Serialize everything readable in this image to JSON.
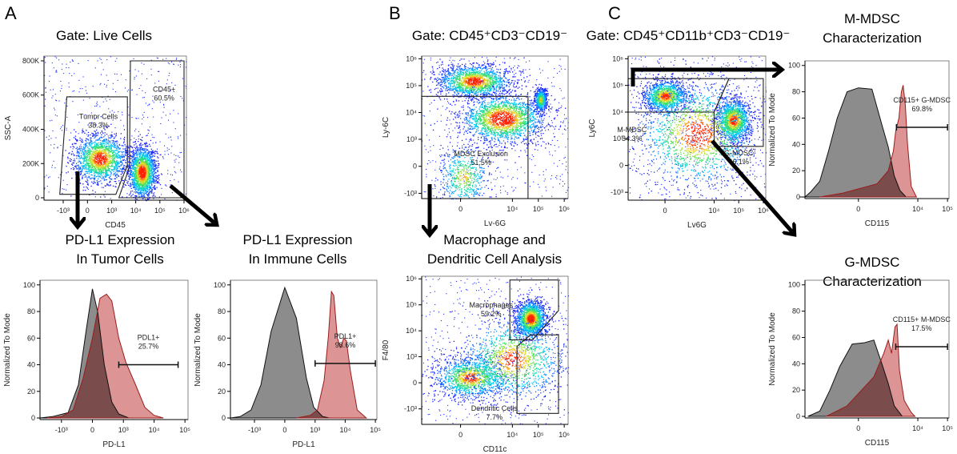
{
  "panel_letters": [
    "A",
    "B",
    "C"
  ],
  "colors": {
    "control_fill": "#8c8c8c",
    "stain_fill": "#d98888",
    "stain_line": "#9b1c1c",
    "overlap": "#7a4c4c",
    "density": [
      "#1a1aff",
      "#00c8ff",
      "#30e060",
      "#f0e020",
      "#ff2000"
    ]
  },
  "chart_data": [
    {
      "id": "a-scatter",
      "panel": "A",
      "type": "scatter",
      "title": [
        "Gate: Live Cells"
      ],
      "xlabel": "CD45",
      "ylabel": "SSC-A",
      "xscale": "biexponential",
      "yscale": "linear",
      "xticks": [
        "-10³",
        "0",
        "10³",
        "10⁴",
        "10⁵",
        "10⁶"
      ],
      "xtick_values": [
        -1000,
        0,
        1000,
        10000,
        100000,
        1000000
      ],
      "yticks": [
        "0",
        "200K",
        "400K",
        "600K",
        "800K"
      ],
      "ytick_values": [
        0,
        200000,
        400000,
        600000,
        800000
      ],
      "populations": [
        {
          "center": [
            300,
            230000
          ],
          "spread": [
            0.55,
            70000
          ],
          "weight": 1.0
        },
        {
          "center": [
            18000,
            150000
          ],
          "spread": [
            0.28,
            75000
          ],
          "weight": 1.1
        }
      ],
      "gates": [
        {
          "label": "Tumor Cells",
          "pct": "38.3%",
          "vertices": [
            [
              -1400,
              20000
            ],
            [
              -700,
              590000
            ],
            [
              4500,
              590000
            ],
            [
              4500,
              190000
            ],
            [
              1500,
              20000
            ]
          ],
          "label_at": [
            250,
            460000
          ]
        },
        {
          "label": "CD45+",
          "pct": "60.5%",
          "vertices": [
            [
              2000,
              0
            ],
            [
              5500,
              180000
            ],
            [
              6000,
              800000
            ],
            [
              1000000,
              800000
            ],
            [
              1000000,
              0
            ]
          ],
          "label_at": [
            150000,
            620000
          ]
        }
      ]
    },
    {
      "id": "a-hist-tumor",
      "panel": "A",
      "type": "histogram",
      "title": [
        "PD-L1 Expression",
        "In Tumor Cells"
      ],
      "xlabel": "PD-L1",
      "ylabel": "Normalized To Mode",
      "xticks": [
        "-10³",
        "0",
        "10³",
        "10⁴",
        "10⁵"
      ],
      "xtick_values": [
        -1000,
        0,
        1000,
        10000,
        100000
      ],
      "yticks": [
        "0",
        "20",
        "40",
        "60",
        "80",
        "100"
      ],
      "ytick_values": [
        0,
        20,
        40,
        60,
        80,
        100
      ],
      "series": [
        {
          "role": "control",
          "points": [
            [
              -6000,
              0
            ],
            [
              -2000,
              1
            ],
            [
              -600,
              4
            ],
            [
              -250,
              25
            ],
            [
              -100,
              65
            ],
            [
              0,
              97
            ],
            [
              80,
              80
            ],
            [
              200,
              40
            ],
            [
              400,
              12
            ],
            [
              700,
              3
            ],
            [
              1500,
              0
            ]
          ]
        },
        {
          "role": "stained",
          "points": [
            [
              -3000,
              0
            ],
            [
              -1000,
              1
            ],
            [
              -400,
              6
            ],
            [
              -150,
              30
            ],
            [
              0,
              60
            ],
            [
              120,
              90
            ],
            [
              250,
              93
            ],
            [
              400,
              88
            ],
            [
              700,
              60
            ],
            [
              1200,
              42
            ],
            [
              2500,
              25
            ],
            [
              5000,
              8
            ],
            [
              10000,
              2
            ],
            [
              20000,
              0
            ]
          ]
        }
      ],
      "gates": [
        {
          "label": "PDL1+",
          "pct": "25.7%",
          "range": [
            700,
            60000
          ],
          "level": 40
        }
      ]
    },
    {
      "id": "a-hist-immune",
      "panel": "A",
      "type": "histogram",
      "title": [
        "PD-L1 Expression",
        "In Immune Cells"
      ],
      "xlabel": "PD-L1",
      "ylabel": "Normalized To Mode",
      "xticks": [
        "-10³",
        "0",
        "10³",
        "10⁴",
        "10⁵"
      ],
      "xtick_values": [
        -1000,
        0,
        1000,
        10000,
        100000
      ],
      "yticks": [
        "0",
        "20",
        "40",
        "60",
        "80",
        "100"
      ],
      "ytick_values": [
        0,
        20,
        40,
        60,
        80,
        100
      ],
      "series": [
        {
          "role": "control",
          "points": [
            [
              -8000,
              0
            ],
            [
              -3000,
              1
            ],
            [
              -1300,
              6
            ],
            [
              -600,
              25
            ],
            [
              -250,
              65
            ],
            [
              0,
              98
            ],
            [
              200,
              75
            ],
            [
              500,
              30
            ],
            [
              900,
              8
            ],
            [
              1800,
              1
            ],
            [
              3000,
              0
            ]
          ]
        },
        {
          "role": "stained",
          "points": [
            [
              200,
              0
            ],
            [
              700,
              2
            ],
            [
              1200,
              6
            ],
            [
              2000,
              28
            ],
            [
              2800,
              62
            ],
            [
              3500,
              95
            ],
            [
              4200,
              92
            ],
            [
              5500,
              60
            ],
            [
              7000,
              53
            ],
            [
              9000,
              60
            ],
            [
              11000,
              58
            ],
            [
              15000,
              35
            ],
            [
              25000,
              6
            ],
            [
              50000,
              0
            ]
          ]
        }
      ],
      "gates": [
        {
          "label": "PDL1+",
          "pct": "98.6%",
          "range": [
            1000,
            100000
          ],
          "level": 41
        }
      ]
    },
    {
      "id": "b-scatter-gate",
      "panel": "B",
      "type": "scatter",
      "title": [
        "Gate: CD45⁺CD3⁻CD19⁻"
      ],
      "xlabel": "Lv-6G",
      "ylabel": "Ly-6C",
      "xscale": "biexponential",
      "yscale": "biexponential",
      "xticks": [
        "0",
        "10⁴",
        "10⁵",
        "10⁶"
      ],
      "xtick_values": [
        0,
        10000,
        100000,
        1000000
      ],
      "yticks": [
        "-10³",
        "0",
        "10³",
        "10⁴",
        "10⁵",
        "10⁶"
      ],
      "ytick_values": [
        -1000,
        0,
        1000,
        10000,
        100000,
        1000000
      ],
      "populations": [
        {
          "center": [
            300,
            150000
          ],
          "spread": [
            0.7,
            0.3
          ],
          "weight": 1.0
        },
        {
          "center": [
            4000,
            6000
          ],
          "spread": [
            0.8,
            0.45
          ],
          "weight": 1.2
        },
        {
          "center": [
            120000,
            30000
          ],
          "spread": [
            0.12,
            0.22
          ],
          "weight": 0.35
        },
        {
          "center": [
            50,
            -200
          ],
          "spread": [
            0.5,
            0.6
          ],
          "weight": 0.35
        }
      ],
      "gates": [
        {
          "label": "MDSC Exclusion",
          "pct": "51.5%",
          "vertices": [
            [
              -100000,
              -100000
            ],
            [
              -100000,
              40000
            ],
            [
              40000,
              40000
            ],
            [
              40000,
              -100000
            ]
          ],
          "label_at": [
            600,
            200
          ]
        }
      ]
    },
    {
      "id": "b-scatter-macrophage",
      "panel": "B",
      "type": "scatter",
      "title": [
        "Macrophage and",
        "Dendritic Cell Analysis"
      ],
      "xlabel": "CD11c",
      "ylabel": "F4/80",
      "xscale": "biexponential",
      "yscale": "biexponential",
      "xticks": [
        "0",
        "10⁴",
        "10⁵",
        "10⁶"
      ],
      "xtick_values": [
        0,
        10000,
        100000,
        1000000
      ],
      "yticks": [
        "-10³",
        "0",
        "10³",
        "10⁴",
        "10⁵",
        "10⁶"
      ],
      "ytick_values": [
        -1000,
        0,
        1000,
        10000,
        100000,
        1000000
      ],
      "populations": [
        {
          "center": [
            50000,
            30000
          ],
          "spread": [
            0.3,
            0.35
          ],
          "weight": 1.0
        },
        {
          "center": [
            200,
            100
          ],
          "spread": [
            0.7,
            0.4
          ],
          "weight": 0.8
        },
        {
          "center": [
            10000,
            800
          ],
          "spread": [
            1.0,
            0.8
          ],
          "weight": 0.8
        }
      ],
      "gates": [
        {
          "label": "Macrophages",
          "pct": "59.2%",
          "vertices": [
            [
              8000,
              4500
            ],
            [
              8000,
              900000
            ],
            [
              600000,
              900000
            ],
            [
              600000,
              60000
            ],
            [
              60000,
              4500
            ]
          ],
          "label_at": [
            1500,
            80000
          ]
        },
        {
          "label": "Dendritic Cells",
          "pct": "7.7%",
          "vertices": [
            [
              15000,
              -1500
            ],
            [
              15000,
              2500
            ],
            [
              50000,
              7000
            ],
            [
              600000,
              7000
            ],
            [
              600000,
              -1500
            ]
          ],
          "label_at": [
            2000,
            -1200
          ]
        }
      ]
    },
    {
      "id": "c-scatter-gate",
      "panel": "C",
      "type": "scatter",
      "title": [
        "Gate: CD45⁺CD11b⁺CD3⁻CD19⁻"
      ],
      "xlabel": "Lv6G",
      "ylabel": "Ly6C",
      "xscale": "biexponential",
      "yscale": "biexponential",
      "xticks": [
        "0",
        "10⁴",
        "10⁵",
        "10⁶"
      ],
      "xtick_values": [
        0,
        10000,
        100000,
        1000000
      ],
      "yticks": [
        "-10³",
        "0",
        "10³",
        "10⁴",
        "10⁵",
        "10⁶"
      ],
      "ytick_values": [
        -1000,
        0,
        1000,
        10000,
        100000,
        1000000
      ],
      "populations": [
        {
          "center": [
            0,
            40000
          ],
          "spread": [
            0.45,
            0.3
          ],
          "weight": 0.8
        },
        {
          "center": [
            60000,
            5000
          ],
          "spread": [
            0.35,
            0.4
          ],
          "weight": 0.9
        },
        {
          "center": [
            2000,
            1500
          ],
          "spread": [
            1.2,
            1.0
          ],
          "weight": 1.0
        }
      ],
      "gates": [
        {
          "label": "M-MDSC",
          "pct": "34.3%",
          "vertices": [
            [
              -100000,
              10000
            ],
            [
              -100000,
              180000
            ],
            [
              40000,
              180000
            ],
            [
              10000,
              10000
            ]
          ],
          "label_at": [
            -2200,
            1800
          ]
        },
        {
          "label": "G-MDSC",
          "pct": "46.1%",
          "vertices": [
            [
              10000,
              500
            ],
            [
              10000,
              10000
            ],
            [
              40000,
              180000
            ],
            [
              1000000,
              180000
            ],
            [
              1000000,
              500
            ]
          ],
          "label_at": [
            100000,
            200
          ]
        }
      ]
    },
    {
      "id": "c-hist-m-mdsc",
      "panel": "C",
      "type": "histogram",
      "title": [
        "M-MDSC",
        "Characterization"
      ],
      "xlabel": "CD115",
      "ylabel": "Normalized To Mode",
      "xticks": [
        "0",
        "10⁴",
        "10⁵"
      ],
      "xtick_values": [
        0,
        10000,
        100000
      ],
      "yticks": [
        "0",
        "20",
        "40",
        "60",
        "80",
        "100"
      ],
      "ytick_values": [
        0,
        20,
        40,
        60,
        80,
        100
      ],
      "series": [
        {
          "role": "control",
          "points": [
            [
              -10000,
              0
            ],
            [
              -4000,
              4
            ],
            [
              -2000,
              12
            ],
            [
              -1000,
              35
            ],
            [
              -500,
              60
            ],
            [
              -200,
              80
            ],
            [
              0,
              83
            ],
            [
              250,
              82
            ],
            [
              600,
              55
            ],
            [
              1000,
              38
            ],
            [
              1600,
              16
            ],
            [
              2500,
              5
            ],
            [
              4000,
              0
            ]
          ]
        },
        {
          "role": "stained",
          "points": [
            [
              -2000,
              0
            ],
            [
              -300,
              3
            ],
            [
              400,
              10
            ],
            [
              1000,
              20
            ],
            [
              1500,
              35
            ],
            [
              1800,
              50
            ],
            [
              2300,
              60
            ],
            [
              2800,
              80
            ],
            [
              3200,
              85
            ],
            [
              3800,
              70
            ],
            [
              4500,
              40
            ],
            [
              6000,
              8
            ],
            [
              9000,
              0
            ]
          ]
        }
      ],
      "gates": [
        {
          "label": "CD115+ G-MDSC",
          "pct": "69.8%",
          "range": [
            1900,
            100000
          ],
          "level": 53
        }
      ]
    },
    {
      "id": "c-hist-g-mdsc",
      "panel": "C",
      "type": "histogram",
      "title": [
        "G-MDSC",
        "Characterization"
      ],
      "xlabel": "CD115",
      "ylabel": "Normalized To Mode",
      "xticks": [
        "0",
        "10⁴",
        "10⁵"
      ],
      "xtick_values": [
        0,
        10000,
        100000
      ],
      "yticks": [
        "0",
        "20",
        "40",
        "60",
        "80",
        "100"
      ],
      "ytick_values": [
        0,
        20,
        40,
        60,
        80,
        100
      ],
      "series": [
        {
          "role": "control",
          "points": [
            [
              -5000,
              0
            ],
            [
              -2000,
              4
            ],
            [
              -900,
              20
            ],
            [
              -400,
              38
            ],
            [
              -100,
              55
            ],
            [
              100,
              56
            ],
            [
              300,
              58
            ],
            [
              600,
              40
            ],
            [
              1000,
              25
            ],
            [
              1600,
              8
            ],
            [
              3000,
              0
            ]
          ]
        },
        {
          "role": "stained",
          "points": [
            [
              -1200,
              0
            ],
            [
              -200,
              8
            ],
            [
              300,
              30
            ],
            [
              700,
              48
            ],
            [
              1000,
              58
            ],
            [
              1300,
              48
            ],
            [
              1700,
              68
            ],
            [
              2000,
              70
            ],
            [
              2400,
              35
            ],
            [
              3500,
              12
            ],
            [
              6000,
              3
            ],
            [
              8000,
              0
            ]
          ]
        }
      ],
      "gates": [
        {
          "label": "CD115+ M-MDSC",
          "pct": "17.5%",
          "range": [
            1800,
            100000
          ],
          "level": 53
        }
      ]
    }
  ]
}
